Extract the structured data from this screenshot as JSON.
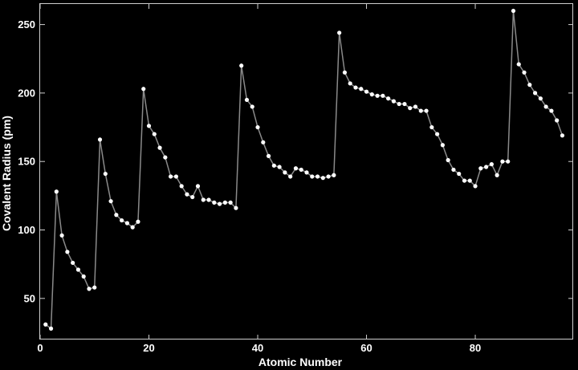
{
  "chart_data": {
    "type": "scatter",
    "title": "",
    "xlabel": "Atomic Number",
    "ylabel": "Covalent Radius (pm)",
    "xlim": [
      0,
      98
    ],
    "ylim": [
      20,
      265
    ],
    "xticks": [
      0,
      20,
      40,
      60,
      80
    ],
    "yticks": [
      50,
      100,
      150,
      200,
      250
    ],
    "grid": false,
    "legend": "none",
    "colors": {
      "background": "#000000",
      "line": "#8a8a8a",
      "point": "#ffffff",
      "frame": "#cfcfcf",
      "text": "#ffffff"
    },
    "series": [
      {
        "x": [
          1,
          2,
          3,
          4,
          5,
          6,
          7,
          8,
          9,
          10,
          11,
          12,
          13,
          14,
          15,
          16,
          17,
          18,
          19,
          20,
          21,
          22,
          23,
          24,
          25,
          26,
          27,
          28,
          29,
          30,
          31,
          32,
          33,
          34,
          35,
          36,
          37,
          38,
          39,
          40,
          41,
          42,
          43,
          44,
          45,
          46,
          47,
          48,
          49,
          50,
          51,
          52,
          53,
          54,
          55,
          56,
          57,
          58,
          59,
          60,
          61,
          62,
          63,
          64,
          65,
          66,
          67,
          68,
          69,
          70,
          71,
          72,
          73,
          74,
          75,
          76,
          77,
          78,
          79,
          80,
          81,
          82,
          83,
          84,
          85,
          86,
          87,
          88,
          89,
          90,
          91,
          92,
          93,
          94,
          95,
          96
        ],
        "y": [
          31,
          28,
          128,
          96,
          84,
          76,
          71,
          66,
          57,
          58,
          166,
          141,
          121,
          111,
          107,
          105,
          102,
          106,
          203,
          176,
          170,
          160,
          153,
          139,
          139,
          132,
          126,
          124,
          132,
          122,
          122,
          120,
          119,
          120,
          120,
          116,
          220,
          195,
          190,
          175,
          164,
          154,
          147,
          146,
          142,
          139,
          145,
          144,
          142,
          139,
          139,
          138,
          139,
          140,
          244,
          215,
          207,
          204,
          203,
          201,
          199,
          198,
          198,
          196,
          194,
          192,
          192,
          189,
          190,
          187,
          187,
          175,
          170,
          162,
          151,
          144,
          141,
          136,
          136,
          132,
          145,
          146,
          148,
          140,
          150,
          150,
          260,
          221,
          215,
          206,
          200,
          196,
          190,
          187,
          180,
          169
        ]
      }
    ]
  }
}
